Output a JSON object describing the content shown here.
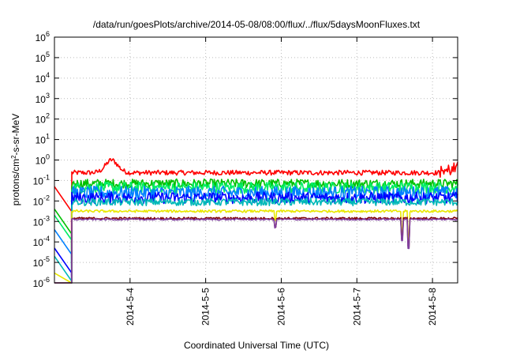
{
  "chart_data": {
    "type": "line",
    "title": "/data/run/goesPlots/archive/2014-05-08/08:00/flux/../flux/5daysMoonFluxes.txt",
    "xlabel": "Coordinated Universal Time (UTC)",
    "ylabel_base": "protons/cm",
    "ylabel_sup": "2",
    "ylabel_rest": "-s-sr-MeV",
    "y_scale": "log",
    "ylim_exponents": [
      -6,
      6
    ],
    "y_tick_exponents": [
      6,
      5,
      4,
      3,
      2,
      1,
      0,
      -1,
      -2,
      -3,
      -4,
      -5,
      -6
    ],
    "y_tick_base": "10",
    "x_range": [
      "2014-05-03 00:00",
      "2014-05-08 08:00"
    ],
    "x_ticks": [
      {
        "label": "2014-5-4",
        "day": 1.0
      },
      {
        "label": "2014-5-5",
        "day": 2.0
      },
      {
        "label": "2014-5-6",
        "day": 3.0
      },
      {
        "label": "2014-5-7",
        "day": 4.0
      },
      {
        "label": "2014-5-8",
        "day": 5.0
      }
    ],
    "grid": true,
    "data_start_day": 0.23,
    "series": [
      {
        "color": "#ff0000",
        "pre": 0.05,
        "log_level": -0.62,
        "noise": 0.12,
        "bump": {
          "center": 0.75,
          "width": 0.12,
          "peak": 0.25
        }
      },
      {
        "color": "#00c000",
        "pre": 0.004,
        "log_level": -1.15,
        "noise": 0.22
      },
      {
        "color": "#00ee66",
        "pre": 0.002,
        "log_level": -1.35,
        "noise": 0.28
      },
      {
        "color": "#0080ff",
        "pre": 0.0004,
        "log_level": -1.6,
        "noise": 0.32
      },
      {
        "color": "#0000ff",
        "pre": 5e-05,
        "log_level": -1.85,
        "noise": 0.28
      },
      {
        "color": "#00b8b8",
        "pre": 2e-05,
        "log_level": -2.05,
        "noise": 0.18
      },
      {
        "color": "#e8e800",
        "pre": 3e-06,
        "log_level": -2.5,
        "noise": 0.06
      },
      {
        "color": "#800000",
        "pre": 1e-06,
        "log_level": -2.85,
        "noise": 0.05
      },
      {
        "color": "#8040a0",
        "pre": 1e-06,
        "log_level": -2.9,
        "noise": 0.04
      }
    ],
    "dips": [
      {
        "day": 2.92,
        "depth": 0.4
      },
      {
        "day": 4.6,
        "depth": 1.0
      },
      {
        "day": 4.68,
        "depth": 1.4
      }
    ]
  }
}
